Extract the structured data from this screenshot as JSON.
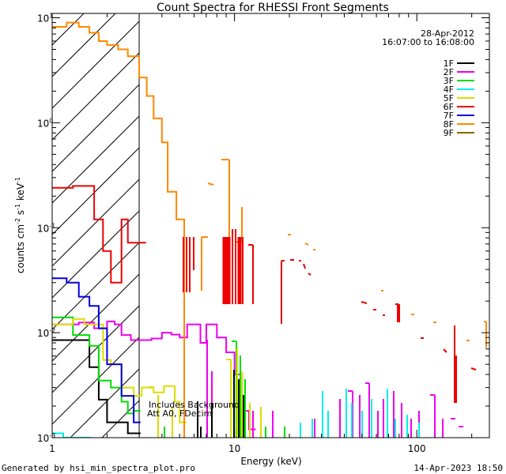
{
  "chart_data": {
    "type": "line",
    "title": "Count Spectra for RHESSI Front Segments",
    "xlabel": "Energy (keV)",
    "ylabel_parts": [
      "counts cm",
      "-2",
      " s",
      "-1",
      " keV",
      "-1"
    ],
    "xscale": "log",
    "yscale": "log",
    "xlim": [
      1,
      250
    ],
    "ylim": [
      0.001,
      11
    ],
    "xticks": [
      {
        "v": 1,
        "label": "1"
      },
      {
        "v": 10,
        "label": "10"
      },
      {
        "v": 100,
        "label": "100"
      }
    ],
    "yticks": [
      {
        "v": 0.001,
        "base": "10",
        "exp": "-3"
      },
      {
        "v": 0.01,
        "base": "10",
        "exp": "-2"
      },
      {
        "v": 0.1,
        "base": "10",
        "exp": "-1"
      },
      {
        "v": 1,
        "base": "10",
        "exp": "0"
      },
      {
        "v": 10,
        "base": "10",
        "exp": "1"
      }
    ],
    "date": "28-Apr-2012",
    "time_range": "16:07:00 to 16:08:00",
    "attenuator_note": [
      "Includes Background",
      "Att A0, FDecim"
    ],
    "hatched_region_upper_kev": 3,
    "series": [
      {
        "name": "1F",
        "color": "#000000",
        "steps": [
          [
            1.0,
            0.0085
          ],
          [
            1.4,
            0.0085
          ],
          [
            1.6,
            0.0047
          ],
          [
            1.8,
            0.0023
          ],
          [
            2.0,
            0.0014
          ],
          [
            2.6,
            0.0011
          ],
          [
            2.8,
            0.0011
          ]
        ]
      },
      {
        "name": "2F",
        "color": "#ee00ee",
        "steps": [
          [
            1.0,
            0.012
          ],
          [
            1.4,
            0.0125
          ],
          [
            1.7,
            0.011
          ],
          [
            2.0,
            0.0128
          ],
          [
            2.2,
            0.012
          ],
          [
            2.4,
            0.0095
          ],
          [
            2.7,
            0.0085
          ],
          [
            3.0,
            0.0085
          ],
          [
            3.5,
            0.0088
          ],
          [
            4.0,
            0.01
          ],
          [
            4.5,
            0.0096
          ],
          [
            5.0,
            0.009
          ],
          [
            5.5,
            0.012
          ],
          [
            6.0,
            0.012
          ],
          [
            6.5,
            0.008
          ],
          [
            7.0,
            0.012
          ],
          [
            8.0,
            0.009
          ],
          [
            9.0,
            0.0065
          ],
          [
            10.0,
            0.004
          ],
          [
            11.0,
            0.0018
          ],
          [
            12.0,
            0.0012
          ]
        ]
      },
      {
        "name": "3F",
        "color": "#00dd00",
        "steps": [
          [
            1.0,
            0.014
          ],
          [
            1.3,
            0.0095
          ],
          [
            1.6,
            0.0075
          ],
          [
            1.8,
            0.0035
          ],
          [
            2.1,
            0.003
          ],
          [
            2.4,
            0.0022
          ],
          [
            2.6,
            0.0017
          ],
          [
            2.8,
            0.0018
          ]
        ]
      },
      {
        "name": "4F",
        "color": "#00eeee",
        "steps": [
          [
            1.0,
            0.0011
          ],
          [
            1.15,
            0.001
          ],
          [
            1.5,
            0.001
          ]
        ]
      },
      {
        "name": "5F",
        "color": "#dddd00",
        "steps": [
          [
            1.0,
            0.012
          ],
          [
            1.3,
            0.0135
          ],
          [
            1.5,
            0.012
          ],
          [
            1.9,
            0.0055
          ],
          [
            2.1,
            0.005
          ],
          [
            2.4,
            0.003
          ],
          [
            2.8,
            0.0025
          ],
          [
            3.1,
            0.003
          ],
          [
            3.6,
            0.0027
          ],
          [
            4.1,
            0.0031
          ],
          [
            4.7,
            0.0022
          ],
          [
            5.0,
            0.0014
          ]
        ]
      },
      {
        "name": "6F",
        "color": "#ee0000",
        "steps": [
          [
            1.0,
            0.24
          ],
          [
            1.3,
            0.25
          ],
          [
            1.7,
            0.12
          ],
          [
            1.9,
            0.06
          ],
          [
            2.1,
            0.03
          ],
          [
            2.4,
            0.12
          ],
          [
            2.6,
            0.072
          ],
          [
            3.0,
            0.072
          ]
        ]
      },
      {
        "name": "7F",
        "color": "#0000dd",
        "steps": [
          [
            1.0,
            0.033
          ],
          [
            1.2,
            0.03
          ],
          [
            1.4,
            0.022
          ],
          [
            1.6,
            0.018
          ],
          [
            1.8,
            0.011
          ],
          [
            2.0,
            0.005
          ],
          [
            2.4,
            0.0025
          ],
          [
            2.8,
            0.0014
          ]
        ]
      },
      {
        "name": "8F",
        "color": "#ff8800",
        "steps": [
          [
            1.0,
            8.2
          ],
          [
            1.2,
            9.0
          ],
          [
            1.4,
            8.2
          ],
          [
            1.6,
            7.2
          ],
          [
            1.8,
            6.0
          ],
          [
            2.0,
            5.5
          ],
          [
            2.3,
            5.0
          ],
          [
            2.6,
            4.3
          ],
          [
            3.0,
            2.7
          ],
          [
            3.3,
            1.8
          ],
          [
            3.6,
            1.1
          ],
          [
            4.0,
            0.65
          ],
          [
            4.3,
            0.22
          ],
          [
            4.8,
            0.12
          ],
          [
            5.3,
            0.0009
          ]
        ]
      },
      {
        "name": "9F",
        "color": "#886600",
        "steps": []
      }
    ]
  },
  "footer": {
    "left": "Generated by hsi_min_spectra_plot.pro",
    "right": "14-Apr-2023 18:50"
  }
}
